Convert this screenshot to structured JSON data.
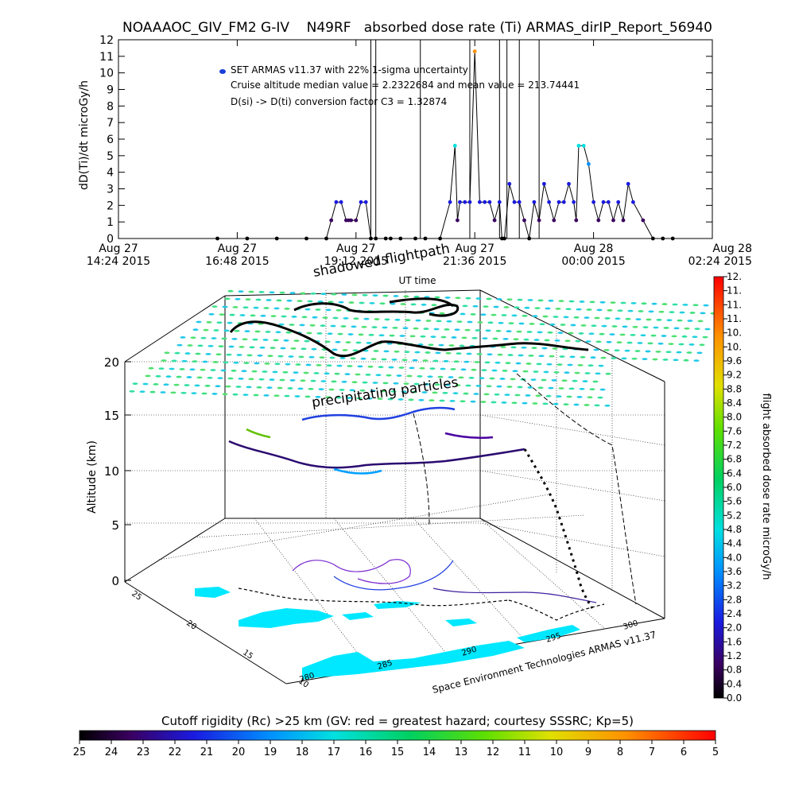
{
  "title": "NOAAAOC_GIV_FM2 G-IV    N49RF   absorbed dose rate (Ti) ARMAS_dirIP_Report_56940",
  "legend": {
    "marker_color": "#1a3fd9",
    "line1": "SET ARMAS v11.37 with 22% 1-sigma uncertainty",
    "line2": "Cruise altitude median value = 2.2322684 and mean value = 213.74441",
    "line3": "D(si) -> D(ti) conversion factor C3 = 1.32874"
  },
  "chart_data": [
    {
      "type": "scatter",
      "title": "",
      "xlabel": "UT time",
      "ylabel": "dD(Ti)/dt microGy/h",
      "ylim": [
        0,
        12
      ],
      "y_ticks": [
        "0",
        "1",
        "2",
        "3",
        "4",
        "5",
        "6",
        "7",
        "8",
        "9",
        "10",
        "11",
        "12"
      ],
      "x_ticks": [
        {
          "l1": "Aug 27",
          "l2": "14:24 2015"
        },
        {
          "l1": "Aug 27",
          "l2": "16:48 2015"
        },
        {
          "l1": "Aug 27",
          "l2": "19:12 2015"
        },
        {
          "l1": "Aug 27",
          "l2": "21:36 2015"
        },
        {
          "l1": "Aug 28",
          "l2": "00:00 2015"
        },
        {
          "l1": "Aug 28",
          "l2": "02:24 2015"
        }
      ],
      "xlim_hours": [
        14.4,
        26.4
      ],
      "series": [
        {
          "color_by_value": true,
          "x": [
            16.4,
            17.0,
            17.6,
            18.2,
            18.6,
            18.7,
            18.8,
            18.9,
            19.0,
            19.05,
            19.1,
            19.2,
            19.3,
            19.4,
            19.5,
            19.6,
            19.8,
            19.9,
            20.1,
            20.4,
            20.6,
            20.9,
            21.1,
            21.2,
            21.25,
            21.3,
            21.4,
            21.5,
            21.6,
            21.7,
            21.8,
            21.9,
            22.0,
            22.1,
            22.15,
            22.2,
            22.3,
            22.4,
            22.5,
            22.6,
            22.7,
            22.8,
            22.9,
            23.0,
            23.1,
            23.2,
            23.3,
            23.4,
            23.5,
            23.6,
            23.65,
            23.7,
            23.8,
            23.9,
            24.0,
            24.1,
            24.2,
            24.3,
            24.4,
            24.5,
            24.6,
            24.7,
            24.8,
            25.0,
            25.2,
            25.4,
            25.6
          ],
          "y": [
            0,
            0,
            0,
            0,
            0,
            1.1,
            2.2,
            2.2,
            1.1,
            1.1,
            1.1,
            1.1,
            2.2,
            2.2,
            0,
            0,
            0,
            0,
            0,
            0,
            0,
            0,
            2.2,
            5.6,
            1.1,
            2.2,
            2.2,
            2.2,
            11.3,
            2.2,
            2.2,
            2.2,
            1.1,
            2.2,
            0,
            0,
            3.3,
            2.2,
            2.2,
            1.1,
            0,
            2.2,
            1.1,
            3.3,
            2.2,
            1.1,
            2.2,
            2.2,
            3.3,
            2.2,
            1.1,
            5.6,
            5.6,
            4.5,
            2.2,
            1.1,
            2.2,
            2.2,
            1.1,
            2.2,
            1.1,
            3.3,
            2.2,
            1.1,
            0,
            0,
            0
          ]
        }
      ]
    },
    {
      "type": "scatter",
      "title": "",
      "zlabel": "Altitude (km)",
      "z_ticks": [
        "0",
        "5",
        "10",
        "15",
        "20"
      ],
      "lon_ticks": [
        "280",
        "285",
        "290",
        "295",
        "300"
      ],
      "lat_ticks": [
        "10",
        "15",
        "20",
        "25"
      ],
      "annotations": [
        "shadowed flightpath",
        "precipitating particles"
      ],
      "credit": "Space Environment Technologies ARMAS v11.37"
    }
  ],
  "colorbar_right": {
    "label": "flight absorbed dose rate microGy/h",
    "ticks": [
      "0.0",
      "0.4",
      "0.8",
      "1.2",
      "1.6",
      "2.0",
      "2.4",
      "2.8",
      "3.2",
      "3.6",
      "4.0",
      "4.4",
      "4.8",
      "5.2",
      "5.6",
      "6.0",
      "6.4",
      "6.8",
      "7.2",
      "7.6",
      "8.0",
      "8.4",
      "8.8",
      "9.2",
      "9.6",
      "10.",
      "10.",
      "11.",
      "11.",
      "11.",
      "12."
    ]
  },
  "colorbar_bottom": {
    "title": "Cutoff rigidity (Rc) >25 km (GV: red = greatest hazard; courtesy SSSRC; Kp=5)",
    "ticks": [
      "25",
      "24",
      "23",
      "22",
      "21",
      "20",
      "19",
      "18",
      "17",
      "16",
      "15",
      "14",
      "13",
      "12",
      "11",
      "10",
      "9",
      "8",
      "7",
      "6",
      "5"
    ]
  }
}
